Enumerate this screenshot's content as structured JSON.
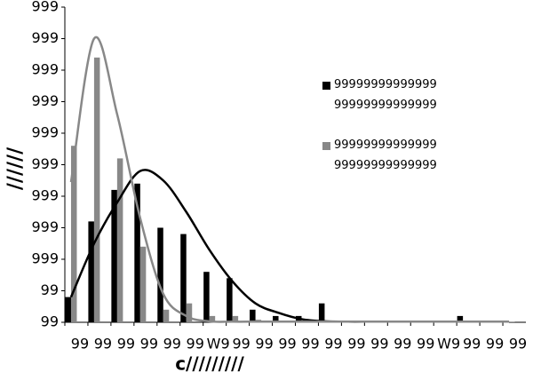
{
  "chart_data": {
    "type": "bar",
    "x_label": "c/////////",
    "y_label": "//////",
    "categories": [
      "99",
      "99",
      "99",
      "99",
      "99",
      "99",
      "W9",
      "99",
      "99",
      "99",
      "99",
      "99",
      "99",
      "99",
      "99",
      "99",
      "W9",
      "99",
      "99",
      "99"
    ],
    "series": [
      {
        "name": "99999999999999 99999999999999",
        "color": "#000000",
        "values": [
          0.8,
          3.2,
          4.2,
          4.4,
          3.0,
          2.8,
          1.6,
          1.4,
          0.4,
          0.2,
          0.2,
          0.6,
          0.05,
          0.03,
          0.03,
          0.02,
          0.02,
          0.2,
          0.02,
          0.02
        ]
      },
      {
        "name": "99999999999999 99999999999999",
        "color": "#888888",
        "values": [
          5.6,
          8.4,
          5.2,
          2.4,
          0.4,
          0.6,
          0.2,
          0.2,
          0.08,
          0.03,
          0.03,
          0.03,
          0.03,
          0.03,
          0.02,
          0.02,
          0.02,
          0.02,
          0.02,
          0.02
        ]
      },
      {
        "type": "line",
        "color": "#000000",
        "values": [
          0.8,
          2.5,
          3.8,
          4.8,
          4.5,
          3.5,
          2.3,
          1.3,
          0.6,
          0.3,
          0.1,
          0.03,
          0.02,
          0.02,
          0.02,
          0.02,
          0.02,
          0.02,
          0.02,
          0.02
        ]
      },
      {
        "type": "line",
        "color": "#888888",
        "values": [
          4.45,
          9.0,
          6.6,
          3.3,
          0.9,
          0.2,
          0.03,
          0.02,
          0.02,
          0.02,
          0.02,
          0.02,
          0.02,
          0.02,
          0.02,
          0.02,
          0.02,
          0.02,
          0.02,
          0.02
        ]
      }
    ],
    "ylim": [
      0,
      10
    ],
    "yticks": [
      {
        "value": 0,
        "label": "99"
      },
      {
        "value": 1,
        "label": "99"
      },
      {
        "value": 2,
        "label": "999"
      },
      {
        "value": 3,
        "label": "999"
      },
      {
        "value": 4,
        "label": "999"
      },
      {
        "value": 5,
        "label": "999"
      },
      {
        "value": 6,
        "label": "999"
      },
      {
        "value": 7,
        "label": "999"
      },
      {
        "value": 8,
        "label": "999"
      },
      {
        "value": 9,
        "label": "999"
      },
      {
        "value": 10,
        "label": "999"
      }
    ]
  }
}
